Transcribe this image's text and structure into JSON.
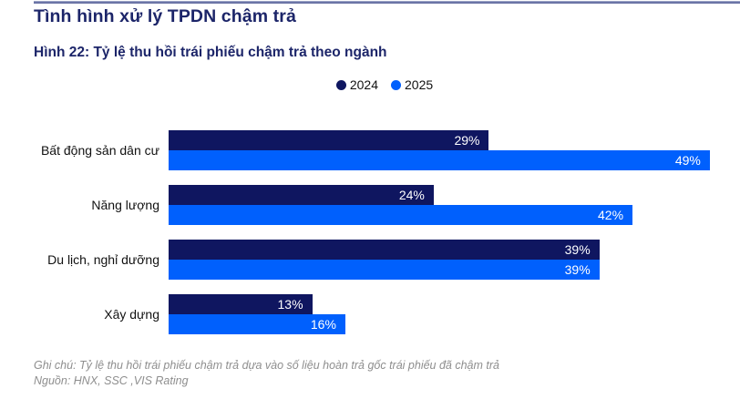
{
  "page_title": "Tình hình xử lý TPDN chậm trả",
  "figure_title": "Hình 22: Tỷ lệ thu hồi trái phiếu chậm trả theo ngành",
  "legend": {
    "items": [
      {
        "label": "2024",
        "color": "#0f1660"
      },
      {
        "label": "2025",
        "color": "#0060fd"
      }
    ]
  },
  "chart_data": {
    "type": "bar",
    "orientation": "horizontal",
    "title": "Hình 22: Tỷ lệ thu hồi trái phiếu chậm trả theo ngành",
    "categories": [
      "Bất động sản dân cư",
      "Năng lượng",
      "Du lịch, nghỉ dưỡng",
      "Xây dựng"
    ],
    "series": [
      {
        "name": "2024",
        "color": "#0f1660",
        "values": [
          29,
          24,
          39,
          13
        ]
      },
      {
        "name": "2025",
        "color": "#0060fd",
        "values": [
          49,
          42,
          39,
          16
        ]
      }
    ],
    "value_suffix": "%",
    "xlim": [
      0,
      50
    ],
    "grid": false,
    "legend_position": "top-center",
    "data_labels": "inside-end-white"
  },
  "footer": {
    "note": "Ghi chú: Tỷ lệ thu hồi trái phiếu chậm trả dựa vào số liệu hoàn trả gốc trái phiếu đã chậm trả",
    "source": "Nguồn: HNX, SSC ,VIS Rating"
  },
  "colors": {
    "title_navy": "#1c2569",
    "bar_navy": "#0f1660",
    "bar_blue": "#0060fd",
    "top_rule": "#6b74a6",
    "footer_gray": "#8e8e8e"
  }
}
